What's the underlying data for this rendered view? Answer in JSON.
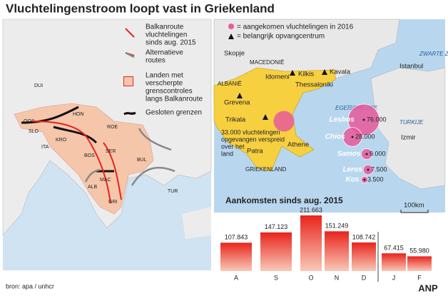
{
  "title": "Vluchtelingenstroom loopt vast in Griekenland",
  "left_map": {
    "legend": [
      {
        "lines": [
          "Balkanroute",
          "vluchtelingen",
          "sinds aug. 2015"
        ]
      },
      {
        "lines": [
          "Alternatieve",
          "routes"
        ]
      },
      {
        "lines": [
          "Landen met",
          "verscherpte",
          "grenscontroles",
          "langs Balkanroute"
        ]
      },
      {
        "lines": [
          "Gesloten grenzen"
        ]
      }
    ],
    "labels": [
      "DUI",
      "OOS",
      "HON",
      "SLO",
      "KRO",
      "ROE",
      "ITA",
      "BOS",
      "SER",
      "MAC",
      "ALB",
      "BUL",
      "TUR",
      "GRI"
    ]
  },
  "right_map": {
    "legend": [
      "= aangekomen vluchtelingen in 2016",
      "= belangrijk opvangcentrum"
    ],
    "labels": [
      "Skopje",
      "MACEDONIË",
      "ALBANIË",
      "Idomeni",
      "Kilkis",
      "Kavala",
      "Thessaloniki",
      "Grevena",
      "Trikala",
      "EGEÏSCHE ZEE",
      "ZWARTE ZEE",
      "Istanbul",
      "TURKIJE",
      "Izmir",
      "Patra",
      "Athene",
      "GRIEKENLAND",
      "100km"
    ],
    "mainland": {
      "value": 33000,
      "lines": [
        "33.000 vluchtelingen",
        "opgevangen verspreid",
        "over het",
        "land"
      ]
    },
    "islands": [
      {
        "name": "Lesbos",
        "value": 76000,
        "value_label": "76.000"
      },
      {
        "name": "Chios",
        "value": 28000,
        "value_label": "28.000"
      },
      {
        "name": "Samos",
        "value": 9000,
        "value_label": "9.000"
      },
      {
        "name": "Leros",
        "value": 7500,
        "value_label": "7.500"
      },
      {
        "name": "Kos",
        "value": 3500,
        "value_label": "3.500"
      }
    ]
  },
  "chart_data": {
    "type": "bar",
    "title": "Aankomsten sinds aug. 2015",
    "categories": [
      "A",
      "S",
      "O",
      "N",
      "D",
      "J",
      "F"
    ],
    "values": [
      107843,
      147123,
      211663,
      151249,
      108742,
      67415,
      55980
    ],
    "value_labels": [
      "107.843",
      "147.123",
      "211.663",
      "151.249",
      "108.742",
      "67.415",
      "55.980"
    ],
    "color": "#e8241c"
  },
  "source": "bron: apa / unhcr",
  "agency": "ANP"
}
